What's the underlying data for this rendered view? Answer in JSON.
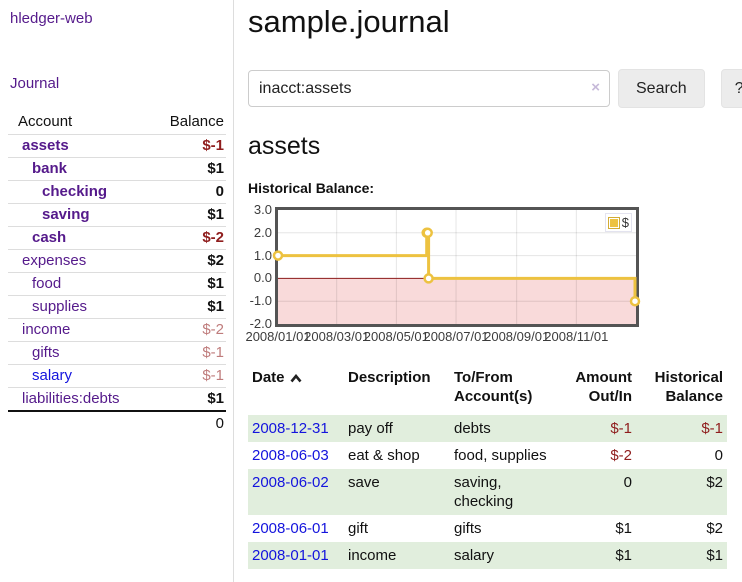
{
  "app": {
    "title": "hledger-web"
  },
  "colors": {
    "link_purple": "#551a8b",
    "link_blue": "#1414dd",
    "negative_dark_red": "#8f1d1d",
    "negative_light_red": "#bf7c7c",
    "row_green": "#e1eedd",
    "series_gold": "#edc240",
    "negative_region_pink": "#f9dada",
    "zero_line_red": "#8b1a1a",
    "chart_border": "#545454"
  },
  "sidebar": {
    "journal_link": "Journal",
    "accounts": {
      "headers": {
        "account": "Account",
        "balance": "Balance"
      },
      "rows": [
        {
          "account": "assets",
          "balance": "$-1",
          "level": 1,
          "bold": true,
          "balance_style": "neg",
          "link": "purple"
        },
        {
          "account": "bank",
          "balance": "$1",
          "level": 2,
          "bold": true,
          "balance_style": "pos",
          "link": "purple"
        },
        {
          "account": "checking",
          "balance": "0",
          "level": 3,
          "bold": true,
          "balance_style": "pos",
          "link": "purple"
        },
        {
          "account": "saving",
          "balance": "$1",
          "level": 3,
          "bold": true,
          "balance_style": "pos",
          "link": "purple"
        },
        {
          "account": "cash",
          "balance": "$-2",
          "level": 2,
          "bold": true,
          "balance_style": "neg",
          "link": "purple"
        },
        {
          "account": "expenses",
          "balance": "$2",
          "level": 1,
          "bold": false,
          "balance_style": "pos",
          "link": "purple"
        },
        {
          "account": "food",
          "balance": "$1",
          "level": 2,
          "bold": false,
          "balance_style": "pos",
          "link": "purple"
        },
        {
          "account": "supplies",
          "balance": "$1",
          "level": 2,
          "bold": false,
          "balance_style": "pos",
          "link": "purple"
        },
        {
          "account": "income",
          "balance": "$-2",
          "level": 1,
          "bold": false,
          "balance_style": "neg-light",
          "link": "purple"
        },
        {
          "account": "gifts",
          "balance": "$-1",
          "level": 2,
          "bold": false,
          "balance_style": "neg-light",
          "link": "purple"
        },
        {
          "account": "salary",
          "balance": "$-1",
          "level": 2,
          "bold": false,
          "balance_style": "neg-light",
          "link": "blue"
        },
        {
          "account": "liabilities:debts",
          "balance": "$1",
          "level": 1,
          "bold": false,
          "balance_style": "pos",
          "link": "purple"
        }
      ],
      "total": "0"
    }
  },
  "main": {
    "title": "sample.journal",
    "search": {
      "value": "inacct:assets",
      "clear_icon": "×",
      "search_button": "Search",
      "help_button": "?"
    },
    "account_heading": "assets",
    "section_label": "Historical Balance:"
  },
  "chart_data": {
    "type": "line",
    "title": "Historical Balance",
    "style": "step",
    "legend_position": "top-right",
    "series": [
      {
        "name": "$",
        "color": "#edc240",
        "points": [
          [
            "2008-01-01",
            1
          ],
          [
            "2008-06-01",
            2
          ],
          [
            "2008-06-02",
            2
          ],
          [
            "2008-06-03",
            0
          ],
          [
            "2008-12-31",
            -1
          ]
        ]
      }
    ],
    "x_domain": [
      "2008-01-01",
      "2009-01-01"
    ],
    "x_ticks": [
      {
        "label": "2008/01/01",
        "date": "2008-01-01"
      },
      {
        "label": "2008/03/01",
        "date": "2008-03-01"
      },
      {
        "label": "2008/05/01",
        "date": "2008-05-01"
      },
      {
        "label": "2008/07/01",
        "date": "2008-07-01"
      },
      {
        "label": "2008/09/01",
        "date": "2008-09-01"
      },
      {
        "label": "2008/11/01",
        "date": "2008-11-01"
      }
    ],
    "y_ticks": [
      {
        "label": "3.0",
        "value": 3
      },
      {
        "label": "2.0",
        "value": 2
      },
      {
        "label": "1.0",
        "value": 1
      },
      {
        "label": "0.0",
        "value": 0
      },
      {
        "label": "-1.0",
        "value": -1
      },
      {
        "label": "-2.0",
        "value": -2
      }
    ],
    "ylim": [
      -2,
      3
    ],
    "grid": true,
    "negative_region": {
      "from": 0,
      "to": -2,
      "color": "#f9dada",
      "line_color": "#8b1a1a"
    }
  },
  "register": {
    "headers": [
      {
        "line1": "Date",
        "line2": "",
        "align": "left",
        "sorted": "asc"
      },
      {
        "line1": "Description",
        "line2": "",
        "align": "left"
      },
      {
        "line1": "To/From",
        "line2": "Account(s)",
        "align": "left"
      },
      {
        "line1": "Amount",
        "line2": "Out/In",
        "align": "right"
      },
      {
        "line1": "Historical",
        "line2": "Balance",
        "align": "right"
      }
    ],
    "rows": [
      {
        "date": "2008-12-31",
        "description": "pay off",
        "accounts": "debts",
        "amount": "$-1",
        "balance": "$-1"
      },
      {
        "date": "2008-06-03",
        "description": "eat & shop",
        "accounts": "food, supplies",
        "amount": "$-2",
        "balance": "0"
      },
      {
        "date": "2008-06-02",
        "description": "save",
        "accounts": "saving, checking",
        "amount": "0",
        "balance": "$2"
      },
      {
        "date": "2008-06-01",
        "description": "gift",
        "accounts": "gifts",
        "amount": "$1",
        "balance": "$2"
      },
      {
        "date": "2008-01-01",
        "description": "income",
        "accounts": "salary",
        "amount": "$1",
        "balance": "$1"
      }
    ]
  }
}
